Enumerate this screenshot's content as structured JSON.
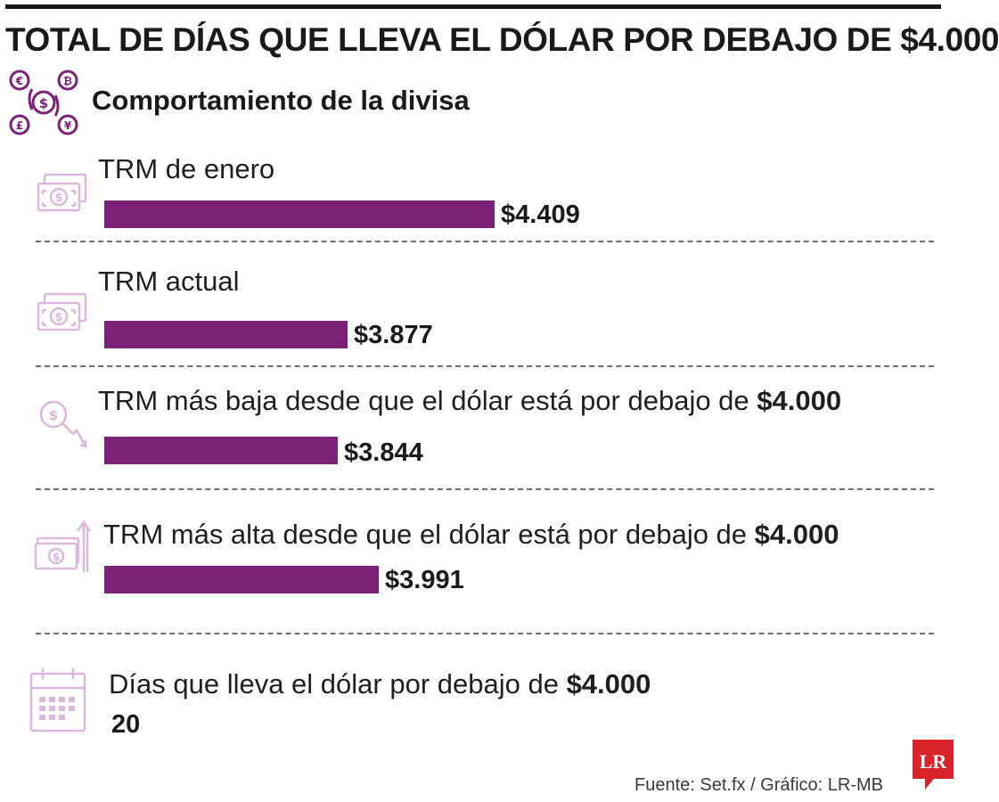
{
  "header": {
    "title": "TOTAL DE DÍAS QUE LLEVA EL DÓLAR POR DEBAJO DE $4.000",
    "subtitle": "Comportamiento de la divisa"
  },
  "chart_data": {
    "type": "bar",
    "title": "TOTAL DE DÍAS QUE LLEVA EL DÓLAR POR DEBAJO DE $4.000",
    "subtitle": "Comportamiento de la divisa",
    "orientation": "horizontal",
    "unit": "COP",
    "categories": [
      "TRM de enero",
      "TRM actual",
      "TRM más baja desde que el dólar está por debajo de $4.000",
      "TRM más alta desde que el dólar está por debajo de $4.000"
    ],
    "values": [
      4409,
      3877,
      3844,
      3991
    ],
    "value_labels": [
      "$4.409",
      "$3.877",
      "$3.844",
      "$3.991"
    ],
    "label_parts": [
      {
        "text": "TRM de enero",
        "bold": ""
      },
      {
        "text": "TRM actual",
        "bold": ""
      },
      {
        "text": "TRM más baja desde que el dólar está por debajo de ",
        "bold": "$4.000"
      },
      {
        "text": "TRM más alta desde que el dólar está por debajo de ",
        "bold": "$4.000"
      }
    ],
    "days": {
      "label": "Días que lleva el dólar por debajo de ",
      "label_bold": "$4.000",
      "value": "20"
    },
    "xlabel": "",
    "ylabel": ""
  },
  "footer": {
    "source": "Fuente: Set.fx / Gráfico: LR-MB",
    "logo_text": "LR"
  },
  "colors": {
    "bar": "#7b2278",
    "icon": "#d9b8dc",
    "accent_purple": "#7b2278",
    "logo_red": "#d8232a"
  }
}
